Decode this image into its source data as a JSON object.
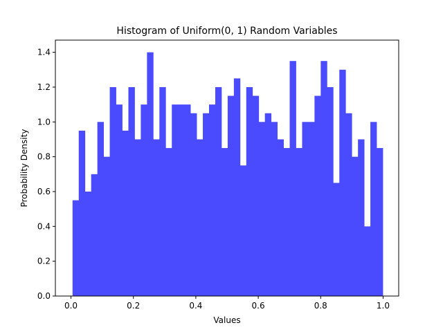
{
  "chart_data": {
    "type": "bar",
    "title": "Histogram of Uniform(0, 1) Random Variables",
    "xlabel": "Values",
    "ylabel": "Probability Density",
    "xlim": [
      -0.05,
      1.05
    ],
    "ylim": [
      0,
      1.47
    ],
    "x_ticks": [
      "0.0",
      "0.2",
      "0.4",
      "0.6",
      "0.8",
      "1.0"
    ],
    "y_ticks": [
      "0.0",
      "0.2",
      "0.4",
      "0.6",
      "0.8",
      "1.0",
      "1.2",
      "1.4"
    ],
    "bar_color": "#4a4aff",
    "bins_start": 0.005,
    "bin_width": 0.01988,
    "values": [
      0.55,
      0.95,
      0.6,
      0.7,
      1.0,
      0.8,
      1.2,
      1.1,
      0.95,
      1.2,
      0.9,
      1.1,
      1.4,
      0.9,
      1.2,
      0.85,
      1.1,
      1.1,
      1.1,
      1.05,
      0.9,
      1.05,
      1.1,
      1.2,
      0.85,
      1.15,
      1.25,
      0.75,
      1.2,
      1.15,
      1.0,
      1.05,
      1.0,
      0.9,
      0.85,
      1.35,
      0.85,
      1.0,
      1.0,
      1.15,
      1.35,
      1.2,
      0.65,
      1.3,
      1.05,
      0.8,
      0.9,
      0.4,
      1.0,
      0.85
    ],
    "grid": false,
    "legend": "none"
  }
}
